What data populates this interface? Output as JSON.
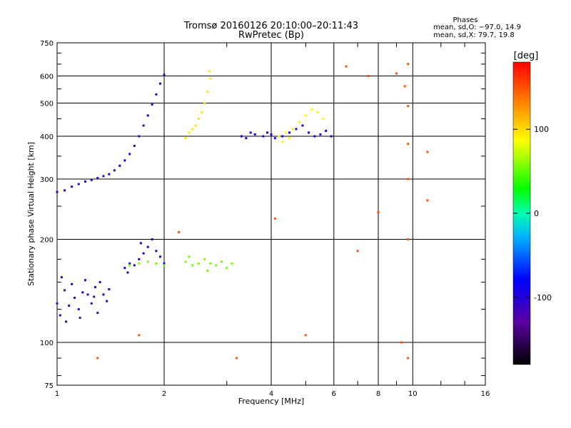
{
  "chart_data": {
    "type": "scatter",
    "title": "Tromsø 20160126 20:10:00–20:11:43",
    "subtitle": "RwPretec (Bp)",
    "xlabel": "Frequency [MHz]",
    "ylabel": "Stationary phase Virtual Height [km]",
    "x_scale": "log",
    "y_scale": "log",
    "xlim": [
      1,
      16
    ],
    "ylim": [
      75,
      750
    ],
    "x_ticks": [
      1,
      2,
      4,
      6,
      8,
      10,
      16
    ],
    "y_ticks": [
      75,
      100,
      200,
      300,
      400,
      500,
      600,
      750
    ],
    "grid": true,
    "colorbar": {
      "label": "[deg]",
      "range": [
        -180,
        180
      ],
      "ticks": [
        100,
        0,
        -100
      ]
    },
    "stats": {
      "header": "Phases",
      "o_line": "mean, sd,O: −97.0, 14.9",
      "x_line": "mean, sd,X: 79.7, 19.8"
    },
    "series": [
      {
        "values": [
          [
            1.0,
            130
          ],
          [
            1.02,
            120
          ],
          [
            1.05,
            142
          ],
          [
            1.08,
            128
          ],
          [
            1.1,
            148
          ],
          [
            1.12,
            135
          ],
          [
            1.15,
            125
          ],
          [
            1.18,
            140
          ],
          [
            1.2,
            152
          ],
          [
            1.22,
            138
          ],
          [
            1.25,
            130
          ],
          [
            1.28,
            145
          ],
          [
            1.3,
            122
          ],
          [
            1.32,
            150
          ],
          [
            1.35,
            138
          ],
          [
            1.38,
            132
          ],
          [
            1.4,
            143
          ],
          [
            1.03,
            155
          ],
          [
            1.06,
            115
          ],
          [
            1.16,
            118
          ],
          [
            1.27,
            136
          ]
        ],
        "phase": -110
      },
      {
        "values": [
          [
            1.0,
            275
          ],
          [
            1.05,
            278
          ],
          [
            1.1,
            285
          ],
          [
            1.15,
            290
          ],
          [
            1.2,
            295
          ],
          [
            1.25,
            298
          ],
          [
            1.3,
            302
          ],
          [
            1.35,
            306
          ],
          [
            1.4,
            310
          ],
          [
            1.45,
            318
          ],
          [
            1.5,
            328
          ],
          [
            1.55,
            340
          ],
          [
            1.6,
            355
          ],
          [
            1.65,
            375
          ],
          [
            1.7,
            400
          ],
          [
            1.75,
            430
          ],
          [
            1.8,
            460
          ],
          [
            1.85,
            495
          ],
          [
            1.9,
            530
          ],
          [
            1.95,
            570
          ],
          [
            2.0,
            605
          ]
        ],
        "phase": -105
      },
      {
        "values": [
          [
            1.55,
            165
          ],
          [
            1.6,
            170
          ],
          [
            1.65,
            168
          ],
          [
            1.7,
            175
          ],
          [
            1.75,
            182
          ],
          [
            1.8,
            190
          ],
          [
            1.85,
            200
          ],
          [
            1.9,
            185
          ],
          [
            1.95,
            178
          ],
          [
            2.0,
            170
          ],
          [
            1.58,
            160
          ],
          [
            1.72,
            195
          ]
        ],
        "phase": -100
      },
      {
        "values": [
          [
            1.6,
            168
          ],
          [
            1.7,
            170
          ],
          [
            1.8,
            172
          ],
          [
            1.9,
            170
          ],
          [
            2.0,
            168
          ],
          [
            2.3,
            172
          ],
          [
            2.4,
            168
          ],
          [
            2.5,
            170
          ],
          [
            2.6,
            175
          ],
          [
            2.7,
            170
          ],
          [
            2.8,
            168
          ],
          [
            2.9,
            172
          ],
          [
            3.0,
            165
          ],
          [
            3.1,
            170
          ],
          [
            2.35,
            178
          ],
          [
            2.65,
            162
          ]
        ],
        "phase": 55
      },
      {
        "values": [
          [
            2.3,
            395
          ],
          [
            2.35,
            410
          ],
          [
            2.4,
            420
          ],
          [
            2.45,
            430
          ],
          [
            2.5,
            450
          ],
          [
            2.55,
            470
          ],
          [
            2.6,
            500
          ],
          [
            2.65,
            540
          ],
          [
            2.7,
            590
          ],
          [
            2.68,
            620
          ]
        ],
        "phase": 95
      },
      {
        "values": [
          [
            3.3,
            400
          ],
          [
            3.4,
            395
          ],
          [
            3.5,
            410
          ],
          [
            3.6,
            405
          ],
          [
            3.8,
            400
          ],
          [
            3.9,
            410
          ],
          [
            4.0,
            405
          ],
          [
            4.1,
            395
          ],
          [
            4.3,
            400
          ],
          [
            4.5,
            410
          ],
          [
            4.7,
            420
          ],
          [
            4.9,
            430
          ],
          [
            5.1,
            410
          ],
          [
            5.3,
            400
          ],
          [
            5.5,
            405
          ],
          [
            5.7,
            415
          ],
          [
            5.9,
            400
          ]
        ],
        "phase": -95
      },
      {
        "values": [
          [
            4.2,
            400
          ],
          [
            4.4,
            410
          ],
          [
            4.6,
            420
          ],
          [
            4.8,
            440
          ],
          [
            5.0,
            460
          ],
          [
            5.2,
            480
          ],
          [
            5.4,
            470
          ],
          [
            5.6,
            450
          ],
          [
            4.3,
            385
          ],
          [
            4.5,
            395
          ]
        ],
        "phase": 90
      },
      {
        "values": [
          [
            6.5,
            640
          ],
          [
            7.5,
            600
          ],
          [
            8.0,
            240
          ],
          [
            9.0,
            610
          ],
          [
            9.5,
            560
          ],
          [
            9.7,
            650
          ],
          [
            9.7,
            490
          ],
          [
            9.7,
            380
          ],
          [
            9.7,
            300
          ],
          [
            9.7,
            200
          ],
          [
            9.7,
            90
          ],
          [
            9.3,
            100
          ],
          [
            11.0,
            360
          ],
          [
            11.0,
            260
          ],
          [
            7.0,
            185
          ],
          [
            3.2,
            90
          ],
          [
            1.3,
            90
          ],
          [
            1.7,
            105
          ],
          [
            5.0,
            105
          ],
          [
            4.1,
            230
          ],
          [
            2.2,
            210
          ]
        ],
        "phase": 150
      }
    ]
  }
}
